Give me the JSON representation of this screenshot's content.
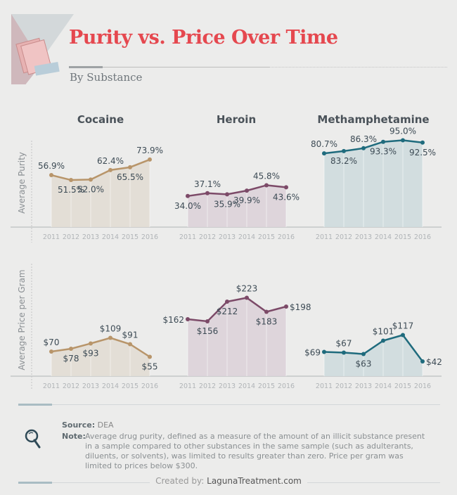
{
  "header": {
    "title": "Purity vs. Price Over Time",
    "subtitle": "By Substance",
    "icon": "money-stack-icon"
  },
  "colors": {
    "title": "#e5484f",
    "cocaine": "#b8956a",
    "heroin": "#7c4a68",
    "methamphetamine": "#1f6b7d"
  },
  "chart_data": [
    {
      "type": "area",
      "title": "Cocaine",
      "ylabel": "Average Purity",
      "categories": [
        "2011",
        "2012",
        "2013",
        "2014",
        "2015",
        "2016"
      ],
      "values": [
        56.9,
        51.5,
        52.0,
        62.4,
        65.5,
        73.9
      ],
      "labels": [
        "56.9%",
        "51.5%",
        "52.0%",
        "62.4%",
        "65.5%",
        "73.9%"
      ],
      "unit": "%"
    },
    {
      "type": "area",
      "title": "Heroin",
      "ylabel": "Average Purity",
      "categories": [
        "2011",
        "2012",
        "2013",
        "2014",
        "2015",
        "2016"
      ],
      "values": [
        34.0,
        37.1,
        35.9,
        39.9,
        45.8,
        43.6
      ],
      "labels": [
        "34.0%",
        "37.1%",
        "35.9%",
        "39.9%",
        "45.8%",
        "43.6%"
      ],
      "unit": "%"
    },
    {
      "type": "area",
      "title": "Methamphetamine",
      "ylabel": "Average Purity",
      "categories": [
        "2011",
        "2012",
        "2013",
        "2014",
        "2015",
        "2016"
      ],
      "values": [
        80.7,
        83.2,
        86.3,
        93.3,
        95.0,
        92.5
      ],
      "labels": [
        "80.7%",
        "83.2%",
        "86.3%",
        "93.3%",
        "95.0%",
        "92.5%"
      ],
      "unit": "%"
    },
    {
      "type": "area",
      "title": "Cocaine",
      "ylabel": "Average Price per Gram",
      "categories": [
        "2011",
        "2012",
        "2013",
        "2014",
        "2015",
        "2016"
      ],
      "values": [
        70,
        78,
        93,
        109,
        91,
        55
      ],
      "labels": [
        "$70",
        "$78",
        "$93",
        "$109",
        "$91",
        "$55"
      ],
      "unit": "$"
    },
    {
      "type": "area",
      "title": "Heroin",
      "ylabel": "Average Price per Gram",
      "categories": [
        "2011",
        "2012",
        "2013",
        "2014",
        "2015",
        "2016"
      ],
      "values": [
        162,
        156,
        212,
        223,
        183,
        198
      ],
      "labels": [
        "$162",
        "$156",
        "$212",
        "$223",
        "$183",
        "$198"
      ],
      "unit": "$"
    },
    {
      "type": "area",
      "title": "Methamphetamine",
      "ylabel": "Average Price per Gram",
      "categories": [
        "2011",
        "2012",
        "2013",
        "2014",
        "2015",
        "2016"
      ],
      "values": [
        69,
        67,
        63,
        101,
        117,
        42
      ],
      "labels": [
        "$69",
        "$67",
        "$63",
        "$101",
        "$117",
        "$42"
      ],
      "unit": "$"
    }
  ],
  "panels": {
    "titles": [
      "Cocaine",
      "Heroin",
      "Methamphetamine"
    ],
    "ylabel_top": "Average Purity",
    "ylabel_bottom": "Average Price per Gram"
  },
  "footer": {
    "icon": "magnifier-icon",
    "source_label": "Source:",
    "source": "DEA",
    "note_label": "Note:",
    "note": "Average drug purity, defined as a measure of the amount of an illicit substance present in a sample compared to other substances in the same sample (such as adulterants, diluents, or solvents), was limited to results greater than zero. Price per gram was limited to prices below $300.",
    "credit_label": "Created by:",
    "credit_site": "LagunaTreatment.com"
  }
}
